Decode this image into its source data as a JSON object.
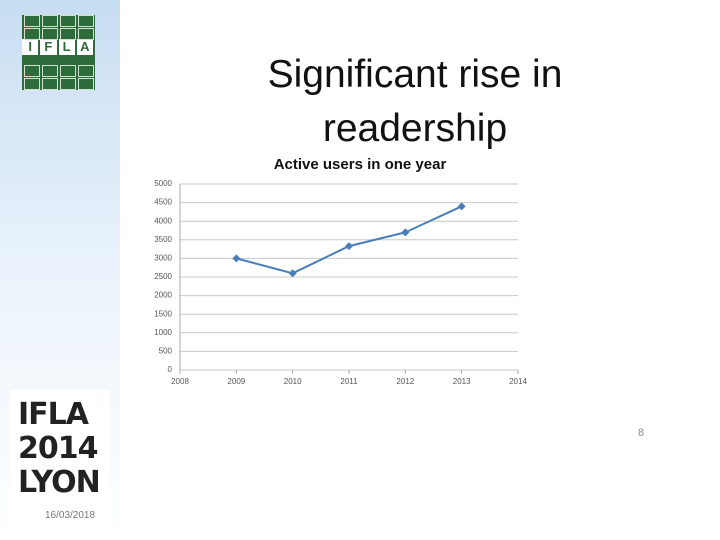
{
  "slide_title": "Significant rise in readership",
  "logo_letters": [
    "I",
    "F",
    "L",
    "A"
  ],
  "congress_logo": [
    "IFLA",
    "2014",
    "LYON"
  ],
  "date": "16/03/2018",
  "page_number": "8",
  "chart_data": {
    "type": "line",
    "title": "Active users in one year",
    "x": [
      2009,
      2010,
      2011,
      2012,
      2013
    ],
    "values": [
      3000,
      2600,
      3330,
      3700,
      4400
    ],
    "color": "#4a7ebb",
    "xlim": [
      2008,
      2014
    ],
    "xticks": [
      2008,
      2009,
      2010,
      2011,
      2012,
      2013,
      2014
    ],
    "ylim": [
      0,
      5000
    ],
    "yticks": [
      0,
      500,
      1000,
      1500,
      2000,
      2500,
      3000,
      3500,
      4000,
      4500,
      5000
    ],
    "grid": true
  }
}
